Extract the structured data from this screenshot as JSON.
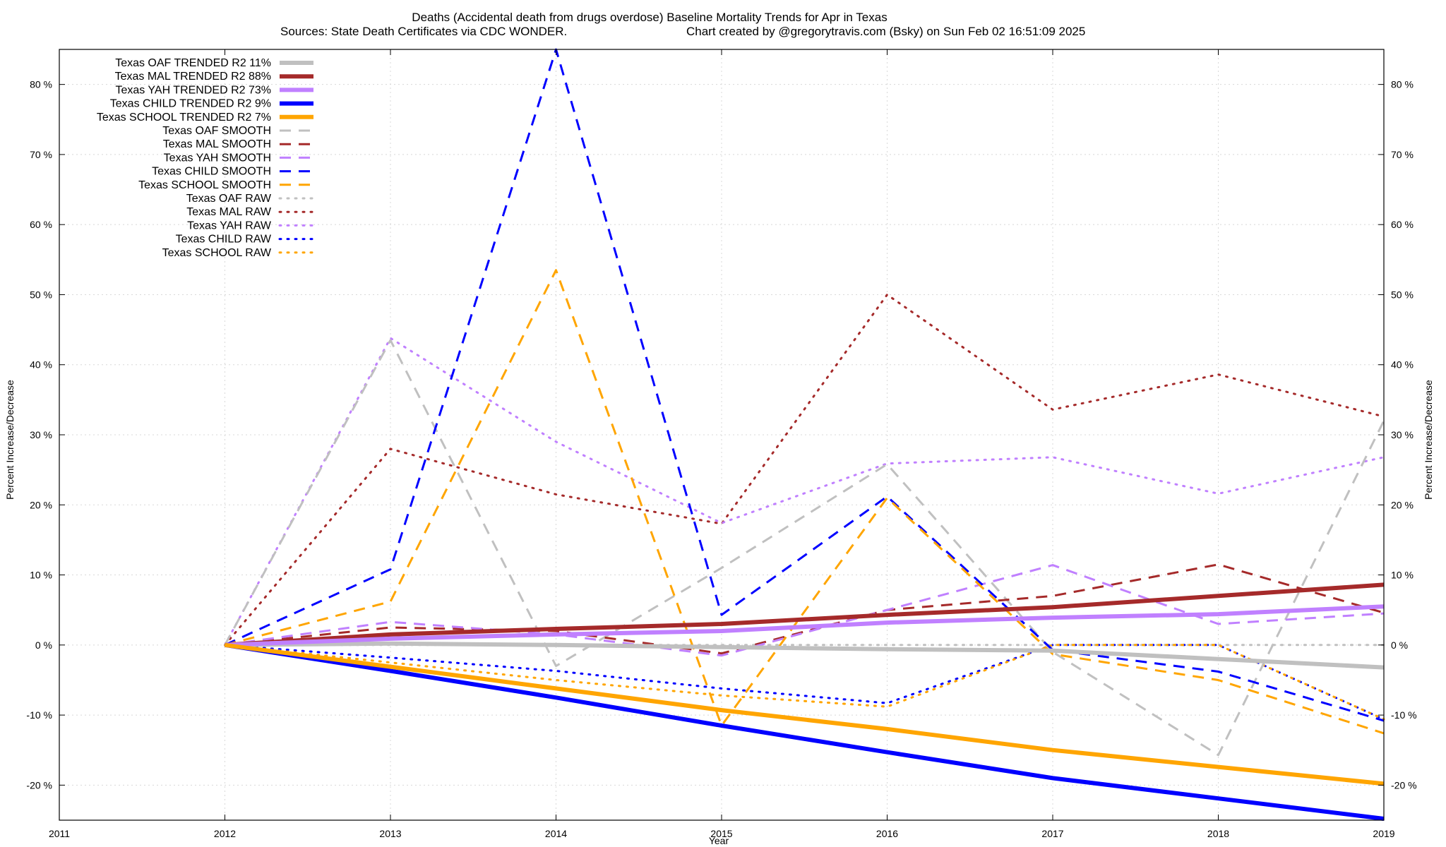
{
  "chart_data": {
    "type": "line",
    "title": "Deaths (Accidental death from drugs overdose)  Baseline Mortality Trends for Apr in Texas",
    "subtitle_left": "Sources: State Death Certificates via CDC WONDER.",
    "subtitle_right": "Chart created by @gregorytravis.com (Bsky) on Sun Feb 02 16:51:09 2025",
    "xlabel": "Year",
    "ylabel": "Percent Increase/Decrease",
    "y2label": "Percent Increase/Decrease",
    "xlim": [
      2011,
      2019
    ],
    "ylim": [
      -25,
      85
    ],
    "x_ticks": [
      2011,
      2012,
      2013,
      2014,
      2015,
      2016,
      2017,
      2018,
      2019
    ],
    "y_ticks": [
      {
        "value": -20,
        "label": "-20 %"
      },
      {
        "value": -10,
        "label": "-10 %"
      },
      {
        "value": 0,
        "label": "0 %"
      },
      {
        "value": 10,
        "label": "10 %"
      },
      {
        "value": 20,
        "label": "20 %"
      },
      {
        "value": 30,
        "label": "30 %"
      },
      {
        "value": 40,
        "label": "40 %"
      },
      {
        "value": 50,
        "label": "50 %"
      },
      {
        "value": 60,
        "label": "60 %"
      },
      {
        "value": 70,
        "label": "70 %"
      },
      {
        "value": 80,
        "label": "80 %"
      }
    ],
    "grid": true,
    "legend_position": "top-left",
    "x": [
      2012,
      2013,
      2014,
      2015,
      2016,
      2017,
      2018,
      2019
    ],
    "series": [
      {
        "name": "Texas OAF TRENDED R2  11%",
        "style": "trended",
        "color": "#c0c0c0",
        "values": [
          0,
          0.2,
          0.0,
          -0.3,
          -0.6,
          -0.8,
          -2.0,
          -3.2
        ]
      },
      {
        "name": "Texas MAL TRENDED R2  88%",
        "style": "trended",
        "color": "#a52a2a",
        "values": [
          0,
          1.5,
          2.3,
          3.0,
          4.3,
          5.4,
          7.0,
          8.6
        ]
      },
      {
        "name": "Texas YAH TRENDED R2  73%",
        "style": "trended",
        "color": "#c080ff",
        "values": [
          0,
          0.9,
          1.5,
          2.0,
          3.2,
          3.9,
          4.4,
          5.5
        ]
      },
      {
        "name": "Texas CHILD TRENDED R2  9%",
        "style": "trended",
        "color": "#0000ff",
        "values": [
          0,
          -3.7,
          -7.5,
          -11.5,
          -15.3,
          -19.0,
          -21.9,
          -24.8
        ]
      },
      {
        "name": "Texas SCHOOL TRENDED R2  7%",
        "style": "trended",
        "color": "#ffa500",
        "values": [
          0,
          -3.1,
          -6.2,
          -9.3,
          -12.0,
          -15.0,
          -17.4,
          -19.8
        ]
      },
      {
        "name": "Texas OAF SMOOTH",
        "style": "smooth",
        "color": "#c0c0c0",
        "values": [
          0,
          43.5,
          -3.0,
          11.0,
          25.8,
          -1.0,
          -15.7,
          32.0
        ]
      },
      {
        "name": "Texas MAL SMOOTH",
        "style": "smooth",
        "color": "#a52a2a",
        "values": [
          0,
          2.5,
          2.0,
          -1.2,
          5.0,
          7.0,
          11.5,
          4.6
        ]
      },
      {
        "name": "Texas YAH SMOOTH",
        "style": "smooth",
        "color": "#c080ff",
        "values": [
          0,
          3.3,
          1.5,
          -1.5,
          5.0,
          11.4,
          3.0,
          4.5
        ]
      },
      {
        "name": "Texas CHILD SMOOTH",
        "style": "smooth",
        "color": "#0000ff",
        "values": [
          0,
          10.8,
          85.0,
          4.3,
          21.2,
          -0.7,
          -3.8,
          -10.8
        ]
      },
      {
        "name": "Texas SCHOOL SMOOTH",
        "style": "smooth",
        "color": "#ffa500",
        "values": [
          0,
          6.2,
          53.5,
          -11.5,
          21.0,
          -1.3,
          -5.0,
          -12.6
        ]
      },
      {
        "name": "Texas OAF RAW",
        "style": "raw",
        "color": "#c0c0c0",
        "values": [
          0,
          0,
          0,
          0,
          0,
          0,
          0,
          0
        ]
      },
      {
        "name": "Texas MAL RAW",
        "style": "raw",
        "color": "#a52a2a",
        "values": [
          0,
          28.0,
          21.5,
          17.3,
          50.0,
          33.6,
          38.6,
          32.6
        ]
      },
      {
        "name": "Texas YAH RAW",
        "style": "raw",
        "color": "#c080ff",
        "values": [
          0,
          43.8,
          29.0,
          17.4,
          25.9,
          26.8,
          21.6,
          26.8
        ]
      },
      {
        "name": "Texas CHILD RAW",
        "style": "raw",
        "color": "#0000ff",
        "values": [
          0,
          -1.8,
          -3.7,
          -6.2,
          -8.3,
          0,
          0,
          -10.6
        ]
      },
      {
        "name": "Texas SCHOOL RAW",
        "style": "raw",
        "color": "#ffa500",
        "values": [
          0,
          -2.5,
          -5.0,
          -7.2,
          -8.8,
          0,
          0,
          -10.6
        ]
      }
    ]
  }
}
